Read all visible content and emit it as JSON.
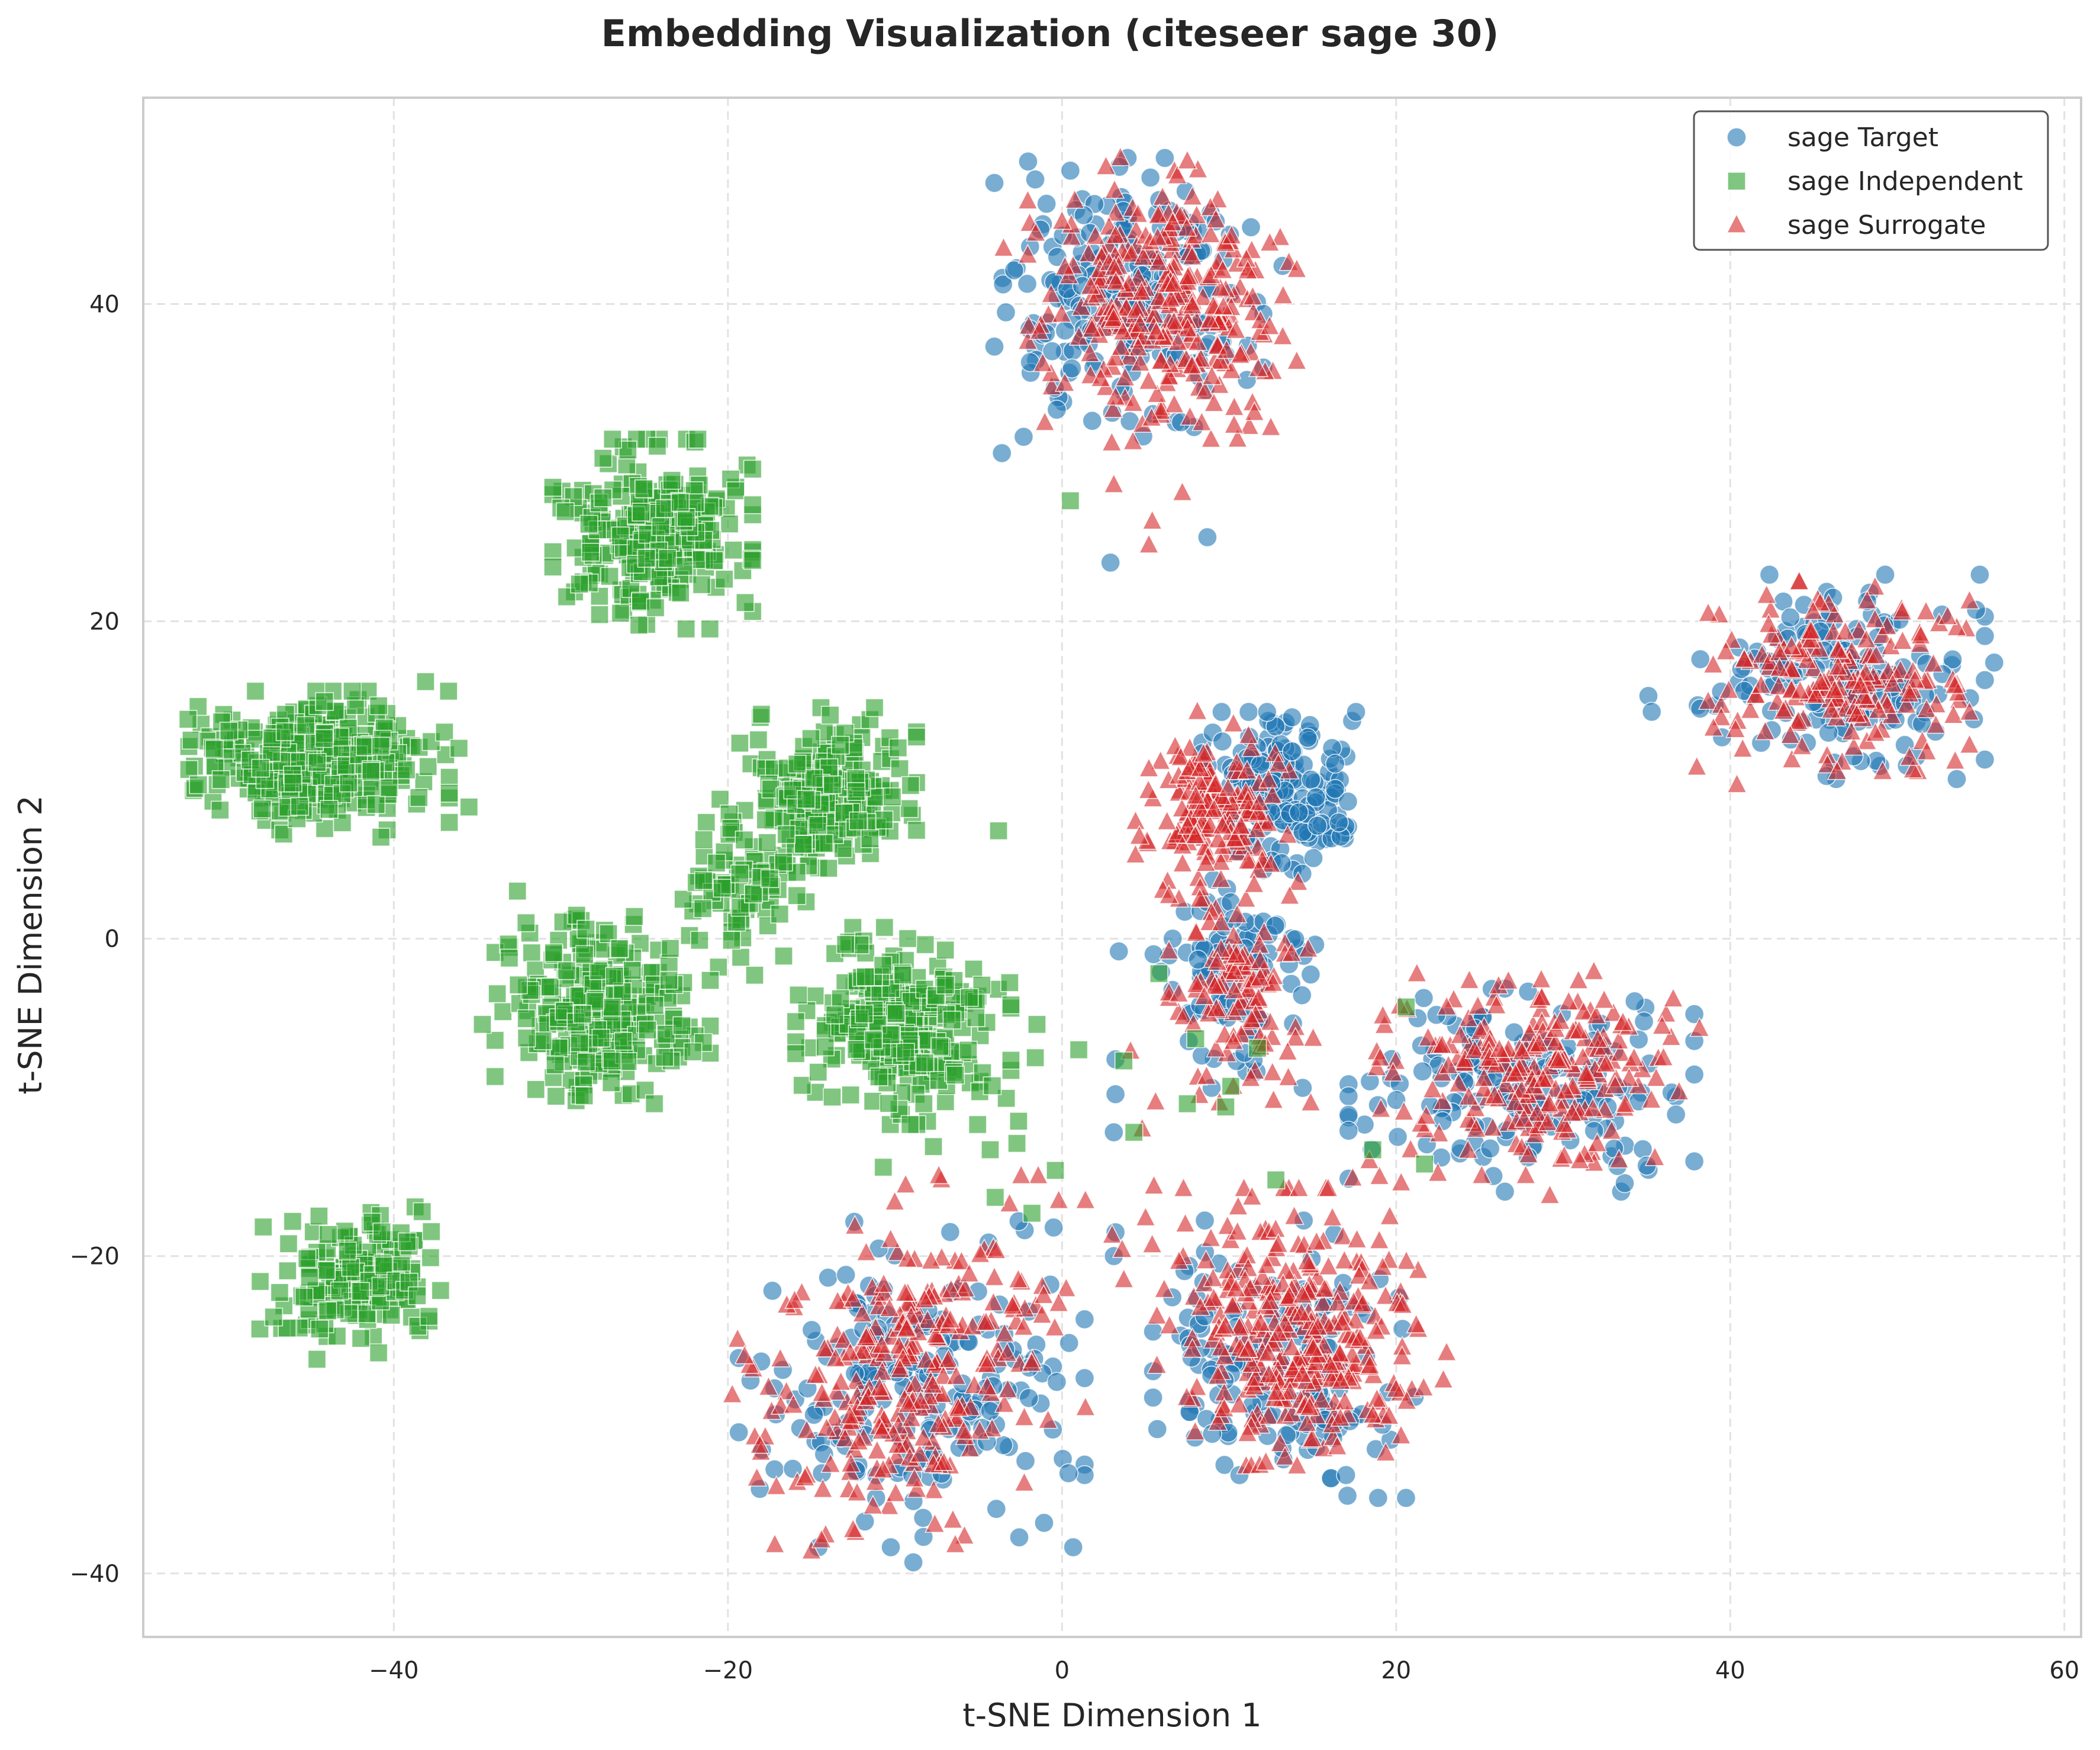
{
  "chart_data": {
    "type": "scatter",
    "title": "Embedding Visualization (citeseer sage 30)",
    "xlabel": "t-SNE Dimension 1",
    "ylabel": "t-SNE Dimension 2",
    "xlim": [
      -55,
      61
    ],
    "ylim": [
      -44,
      53
    ],
    "xticks": [
      -40,
      -20,
      0,
      20,
      40,
      60
    ],
    "yticks": [
      -40,
      -20,
      0,
      20,
      40
    ],
    "grid": true,
    "legend_position": "top-right",
    "series": [
      {
        "name": "sage Target",
        "marker": "circle",
        "color": "#1f77b4",
        "clusters": [
          {
            "cx": 4,
            "cy": 40,
            "sx": 3.5,
            "sy": 4.0,
            "n": 220
          },
          {
            "cx": 13,
            "cy": 9,
            "sx": 2.0,
            "sy": 2.3,
            "n": 190
          },
          {
            "cx": 10.5,
            "cy": -2.5,
            "sx": 2.3,
            "sy": 3.0,
            "n": 90
          },
          {
            "cx": 46.5,
            "cy": 16.5,
            "sx": 3.8,
            "sy": 2.8,
            "n": 170
          },
          {
            "cx": 27.5,
            "cy": -9.5,
            "sx": 4.5,
            "sy": 2.8,
            "n": 170
          },
          {
            "cx": 13.5,
            "cy": -26.5,
            "sx": 3.5,
            "sy": 3.8,
            "n": 160
          },
          {
            "cx": -9,
            "cy": -28,
            "sx": 4.5,
            "sy": 4.5,
            "n": 200
          }
        ],
        "points": [
          [
            2.9,
            23.7
          ],
          [
            0.5,
            48.4
          ],
          [
            7.4,
            47.1
          ],
          [
            -3.6,
            30.6
          ],
          [
            8.7,
            25.3
          ],
          [
            13.2,
            42.4
          ],
          [
            55.8,
            17.4
          ],
          [
            35.1,
            15.3
          ],
          [
            35.3,
            14.3
          ],
          [
            38.2,
            14.5
          ],
          [
            -2.6,
            -17.8
          ],
          [
            -0.5,
            -18.2
          ],
          [
            -0.7,
            -21.8
          ],
          [
            -2.0,
            -23.5
          ],
          [
            3.2,
            -18.5
          ],
          [
            3.1,
            -20.0
          ],
          [
            3.1,
            -12.2
          ],
          [
            3.2,
            -9.8
          ],
          [
            3.2,
            -7.6
          ],
          [
            3.4,
            -0.8
          ],
          [
            6.6,
            -22.6
          ],
          [
            16.1,
            -34.0
          ],
          [
            17.0,
            -33.8
          ],
          [
            24.5,
            -7.5
          ],
          [
            35.0,
            -14.3
          ],
          [
            -8.9,
            -39.3
          ],
          [
            -4.5,
            -31.7
          ]
        ]
      },
      {
        "name": "sage Independent",
        "marker": "square",
        "color": "#2ca02c",
        "clusters": [
          {
            "cx": -24.5,
            "cy": 25.5,
            "sx": 2.6,
            "sy": 2.6,
            "n": 260
          },
          {
            "cx": -44.5,
            "cy": 11,
            "sx": 3.4,
            "sy": 2.0,
            "n": 300
          },
          {
            "cx": -14,
            "cy": 9.5,
            "sx": 2.3,
            "sy": 2.2,
            "n": 200
          },
          {
            "cx": -19,
            "cy": 3.5,
            "sx": 1.6,
            "sy": 2.3,
            "n": 80
          },
          {
            "cx": -27.5,
            "cy": -4.5,
            "sx": 2.8,
            "sy": 2.6,
            "n": 250
          },
          {
            "cx": -9.5,
            "cy": -5.5,
            "sx": 2.8,
            "sy": 2.7,
            "n": 260
          },
          {
            "cx": -42.5,
            "cy": -21.5,
            "sx": 2.4,
            "sy": 2.0,
            "n": 160
          }
        ],
        "points": [
          [
            0.5,
            27.6
          ],
          [
            -38.1,
            16.2
          ],
          [
            -35.5,
            8.3
          ],
          [
            -36.1,
            12.0
          ],
          [
            -3.8,
            6.8
          ],
          [
            -11.5,
            6.3
          ],
          [
            -18.4,
            -2.3
          ],
          [
            -13.6,
            -4.8
          ],
          [
            -1.5,
            -5.4
          ],
          [
            -1.6,
            -7.5
          ],
          [
            1.0,
            -7.0
          ],
          [
            -2.6,
            -11.5
          ],
          [
            -2.7,
            -12.9
          ],
          [
            -4.3,
            -13.3
          ],
          [
            -7.7,
            -13.1
          ],
          [
            -10.7,
            -14.4
          ],
          [
            -4.0,
            -16.3
          ],
          [
            -1.8,
            -17.3
          ],
          [
            -0.4,
            -14.6
          ],
          [
            -39.2,
            -19.1
          ],
          [
            -38.3,
            -17.2
          ],
          [
            -37.8,
            -20.1
          ],
          [
            -38.6,
            -22.5
          ],
          [
            -37.9,
            -23.8
          ],
          [
            -48.0,
            -21.6
          ],
          [
            -44.6,
            -26.5
          ],
          [
            -32.6,
            3.0
          ],
          [
            -28.5,
            0.6
          ],
          [
            -25.6,
            1.4
          ],
          [
            -22.3,
            0.2
          ],
          [
            -21.7,
            -0.1
          ],
          [
            -24.4,
            -10.4
          ],
          [
            -28.6,
            -9.9
          ],
          [
            -31.5,
            -9.5
          ],
          [
            -34.7,
            -5.4
          ],
          [
            3.7,
            -7.7
          ],
          [
            4.3,
            -12.2
          ],
          [
            7.5,
            -10.4
          ],
          [
            8.0,
            -6.3
          ],
          [
            9.8,
            -10.6
          ],
          [
            10.1,
            -9.3
          ],
          [
            11.7,
            -6.9
          ],
          [
            12.8,
            -15.2
          ],
          [
            18.6,
            -13.3
          ],
          [
            21.7,
            -14.2
          ],
          [
            20.6,
            -4.3
          ],
          [
            5.8,
            -2.2
          ]
        ]
      },
      {
        "name": "sage Surrogate",
        "marker": "triangle",
        "color": "#d62728",
        "clusters": [
          {
            "cx": 6,
            "cy": 40,
            "sx": 3.5,
            "sy": 4.0,
            "n": 300
          },
          {
            "cx": 9,
            "cy": 8,
            "sx": 2.0,
            "sy": 2.4,
            "n": 170
          },
          {
            "cx": 11,
            "cy": -3,
            "sx": 2.0,
            "sy": 3.2,
            "n": 110
          },
          {
            "cx": 46.5,
            "cy": 16.5,
            "sx": 3.4,
            "sy": 2.6,
            "n": 190
          },
          {
            "cx": 28.5,
            "cy": -8.5,
            "sx": 4.2,
            "sy": 2.8,
            "n": 220
          },
          {
            "cx": 13.5,
            "cy": -24.5,
            "sx": 3.4,
            "sy": 3.8,
            "n": 260
          },
          {
            "cx": 17.5,
            "cy": -27,
            "sx": 2.4,
            "sy": 2.6,
            "n": 60
          },
          {
            "cx": -11,
            "cy": -29,
            "sx": 3.8,
            "sy": 4.0,
            "n": 200
          },
          {
            "cx": -5.5,
            "cy": -23,
            "sx": 3.0,
            "sy": 3.5,
            "n": 80
          }
        ],
        "points": [
          [
            3.1,
            28.6
          ],
          [
            5.4,
            26.3
          ],
          [
            5.2,
            24.8
          ],
          [
            7.2,
            28.1
          ],
          [
            -3.5,
            43.5
          ],
          [
            12.5,
            32.2
          ],
          [
            7.5,
            49.0
          ],
          [
            8.1,
            14.3
          ],
          [
            12.2,
            -33.0
          ],
          [
            11.1,
            -31.2
          ],
          [
            29.2,
            -16.2
          ],
          [
            21.8,
            -11.2
          ],
          [
            22.5,
            -14.8
          ],
          [
            19.0,
            -15.0
          ],
          [
            38.0,
            10.8
          ],
          [
            40.4,
            9.7
          ],
          [
            -15.0,
            -38.6
          ],
          [
            -14.4,
            -37.9
          ],
          [
            -18.7,
            -26.9
          ],
          [
            -19.0,
            -26.3
          ],
          [
            3.0,
            -18.7
          ],
          [
            3.6,
            -19.6
          ],
          [
            3.7,
            -21.5
          ],
          [
            5.4,
            -19.3
          ],
          [
            5.5,
            -15.6
          ],
          [
            5.0,
            -17.6
          ],
          [
            4.8,
            -12.0
          ],
          [
            5.6,
            -10.3
          ],
          [
            4.1,
            -7.1
          ],
          [
            17.4,
            -15.1
          ],
          [
            18.4,
            -14.0
          ],
          [
            20.3,
            -15.4
          ],
          [
            10.5,
            -18.5
          ],
          [
            -2.3,
            -24.5
          ],
          [
            -1.1,
            -22.5
          ],
          [
            -0.2,
            -23.0
          ]
        ]
      }
    ]
  }
}
